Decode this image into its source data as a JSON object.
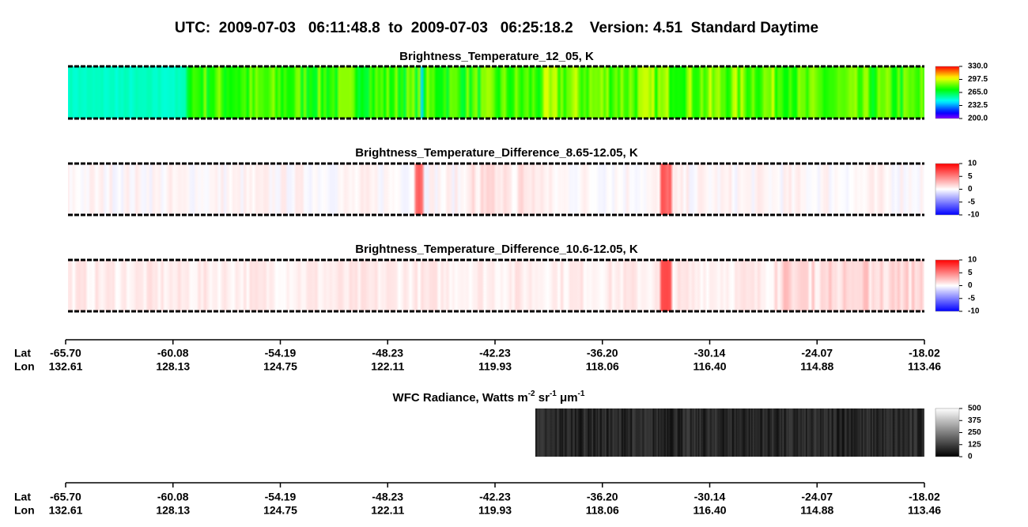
{
  "title": "UTC:  2009-07-03   06:11:48.8  to  2009-07-03   06:25:18.2    Version: 4.51  Standard Daytime",
  "chart_data": [
    {
      "type": "heatmap",
      "title": "Brightness_Temperature_12_05, K",
      "colormap": "rainbow",
      "clim": [
        200,
        330
      ],
      "cticks": [
        {
          "value": 330,
          "label": "330.0"
        },
        {
          "value": 297.5,
          "label": "297.5"
        },
        {
          "value": 265,
          "label": "265.0"
        },
        {
          "value": 232.5,
          "label": "232.5"
        },
        {
          "value": 200,
          "label": "200.0"
        }
      ]
    },
    {
      "type": "heatmap",
      "title": "Brightness_Temperature_Difference_8.65-12.05, K",
      "colormap": "bwr",
      "clim": [
        -10,
        10
      ],
      "cticks": [
        10,
        5,
        0,
        -5,
        -10
      ]
    },
    {
      "type": "heatmap",
      "title": "Brightness_Temperature_Difference_10.6-12.05, K",
      "colormap": "bwr",
      "clim": [
        -10,
        10
      ],
      "cticks": [
        10,
        5,
        0,
        -5,
        -10
      ]
    },
    {
      "type": "heatmap",
      "title": [
        "WFC Radiance, Watts m",
        "-2",
        " sr",
        "-1",
        " μm",
        "-1"
      ],
      "colormap": "gray",
      "clim": [
        0,
        500
      ],
      "cticks": [
        500,
        375,
        250,
        125,
        0
      ]
    }
  ],
  "track": {
    "row_labels": [
      "Lat",
      "Lon"
    ],
    "lat": [
      "-65.70",
      "-60.08",
      "-54.19",
      "-48.23",
      "-42.23",
      "-36.20",
      "-30.14",
      "-24.07",
      "-18.02"
    ],
    "lon": [
      "132.61",
      "128.13",
      "124.75",
      "122.11",
      "119.93",
      "118.06",
      "116.40",
      "114.88",
      "113.46"
    ]
  }
}
